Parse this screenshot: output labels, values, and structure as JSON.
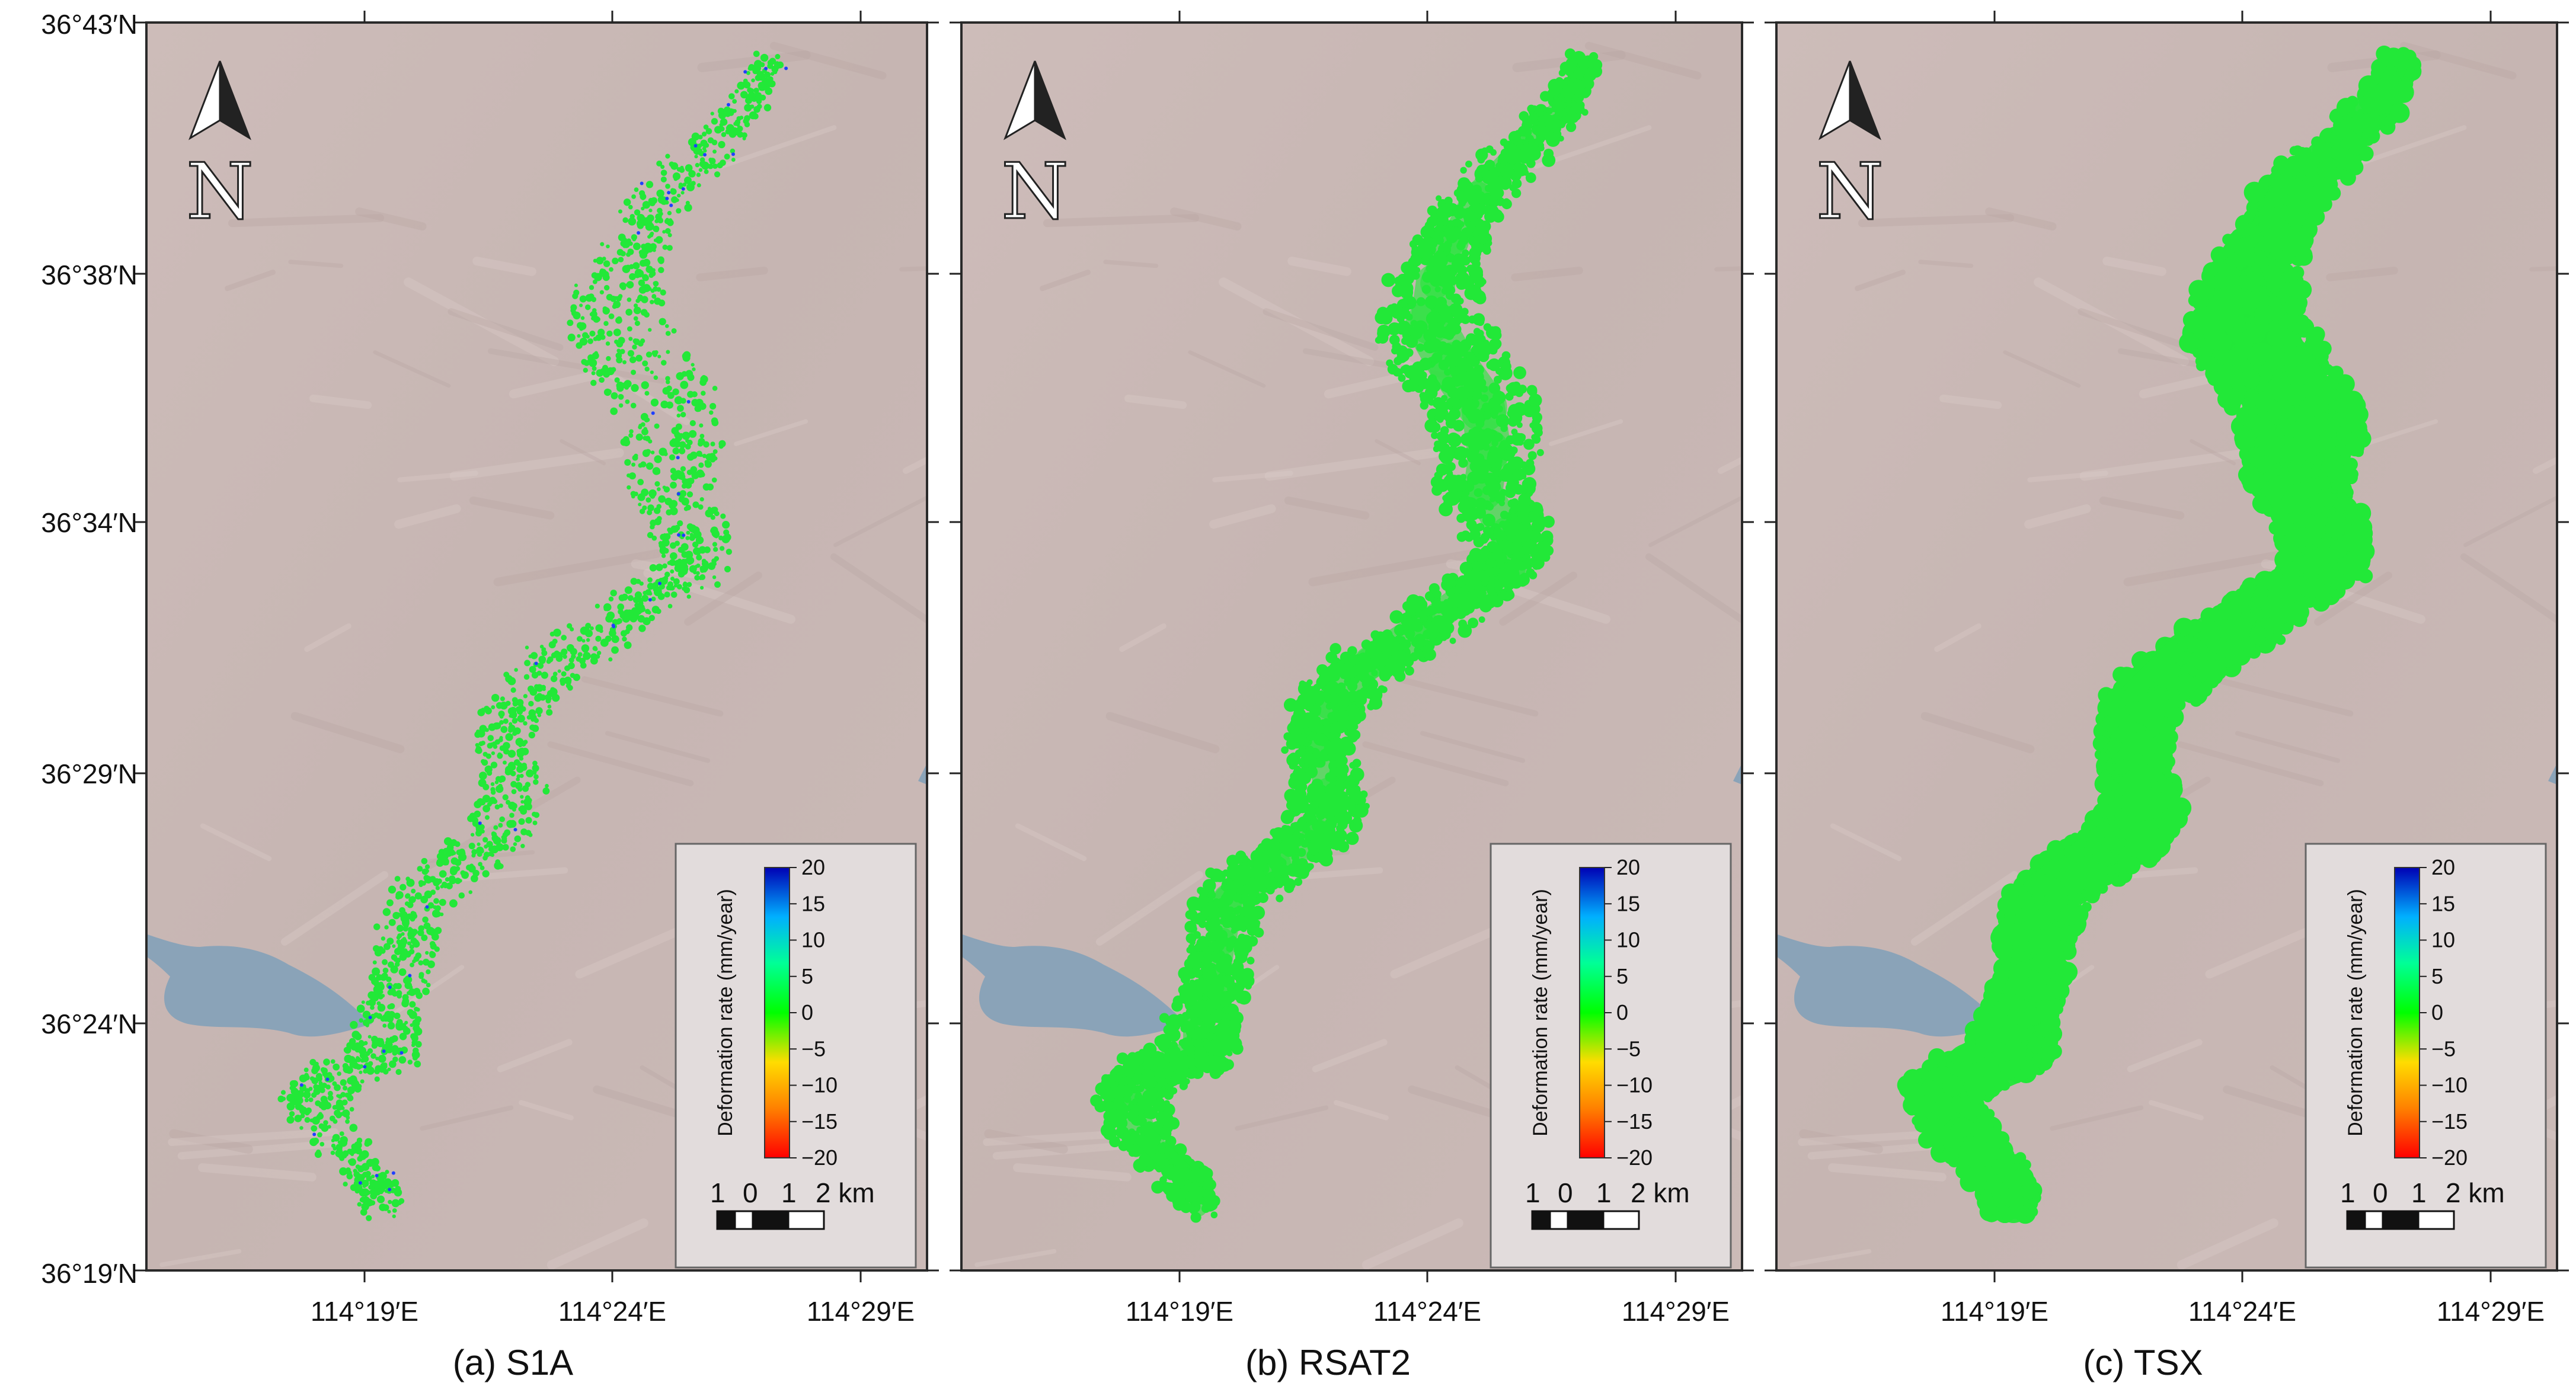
{
  "figure": {
    "panels": [
      {
        "id": "a",
        "caption": "(a) S1A",
        "density": 0.35
      },
      {
        "id": "b",
        "caption": "(b) RSAT2",
        "density": 0.7
      },
      {
        "id": "c",
        "caption": "(c) TSX",
        "density": 1.0
      }
    ],
    "lat_labels": [
      "36°43′N",
      "36°38′N",
      "36°34′N",
      "36°29′N",
      "36°24′N",
      "36°19′N"
    ],
    "lon_labels": [
      "114°19′E",
      "114°24′E",
      "114°29′E"
    ],
    "legend": {
      "title": "Deformation rate (mm/year)",
      "ticks": [
        "20",
        "15",
        "10",
        "5",
        "0",
        "−5",
        "−10",
        "−15",
        "−20"
      ],
      "colors": [
        "#0000c8",
        "#00a0ff",
        "#00ff96",
        "#00ff00",
        "#c8ff00",
        "#ffcc00",
        "#ff0000"
      ]
    },
    "scale_bar": {
      "labels": [
        "1",
        "0",
        "1",
        "2 km"
      ]
    },
    "north_arrow": {
      "letter": "N",
      "icon": "north-arrow-icon"
    },
    "colors": {
      "terrain": "#c9b8b5",
      "lake": "#8aa3b8",
      "points": "#22e838"
    }
  }
}
